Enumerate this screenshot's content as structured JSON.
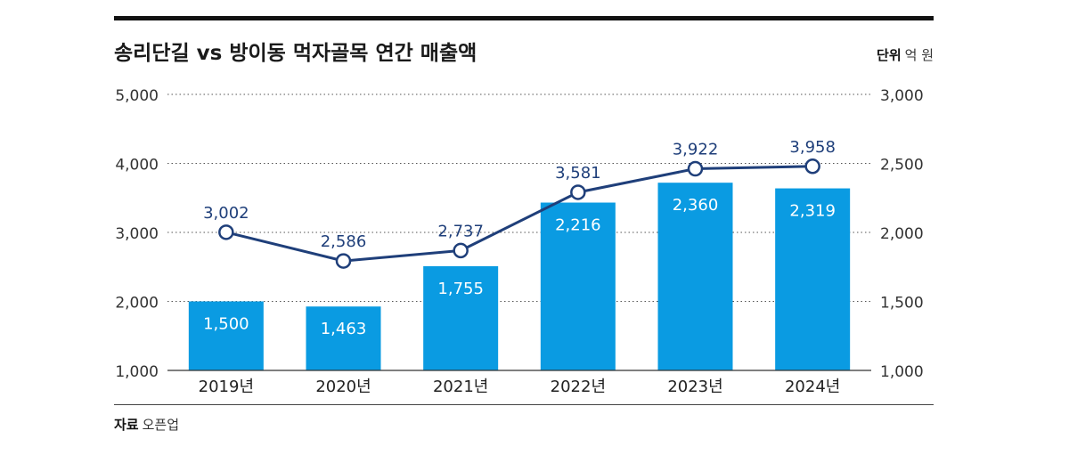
{
  "header": {
    "title": "송리단길 vs 방이동 먹자골목 연간 매출액",
    "unit_label": "단위",
    "unit_value": "억 원"
  },
  "footer": {
    "source_label": "자료",
    "source_value": "오픈업"
  },
  "chart_data": {
    "type": "bar+line",
    "categories": [
      "2019년",
      "2020년",
      "2021년",
      "2022년",
      "2023년",
      "2024년"
    ],
    "series": [
      {
        "type": "line",
        "axis": "left",
        "values": [
          3002,
          2586,
          2737,
          3581,
          3922,
          3958
        ],
        "labels": [
          "3,002",
          "2,586",
          "2,737",
          "3,581",
          "3,922",
          "3,958"
        ],
        "color": "#1f3f7a"
      },
      {
        "type": "bar",
        "axis": "right",
        "values": [
          1500,
          1463,
          1755,
          2216,
          2360,
          2319
        ],
        "labels": [
          "1,500",
          "1,463",
          "1,755",
          "2,216",
          "2,360",
          "2,319"
        ],
        "color": "#0a9be2"
      }
    ],
    "left_axis": {
      "range": [
        1000,
        5000
      ],
      "ticks": [
        1000,
        2000,
        3000,
        4000,
        5000
      ],
      "tick_labels": [
        "1,000",
        "2,000",
        "3,000",
        "4,000",
        "5,000"
      ]
    },
    "right_axis": {
      "range": [
        1000,
        3000
      ],
      "ticks": [
        1000,
        1500,
        2000,
        2500,
        3000
      ],
      "tick_labels": [
        "1,000",
        "1,500",
        "2,000",
        "2,500",
        "3,000"
      ]
    },
    "grid": "dotted-horizontal"
  }
}
